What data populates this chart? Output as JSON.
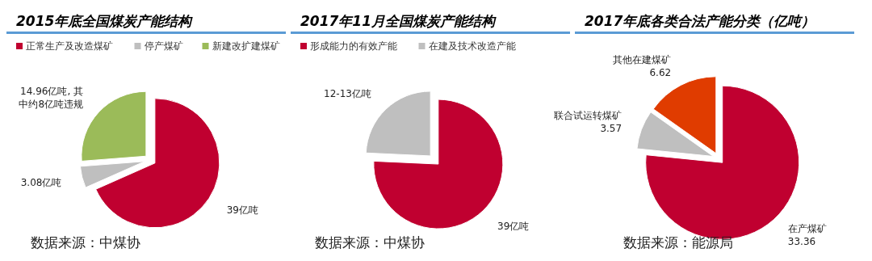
{
  "chart_data": [
    {
      "type": "pie",
      "title": "2015年底全国煤炭产能结构",
      "categories": [
        "正常生产及改造煤矿",
        "停产煤矿",
        "新建改扩建煤矿"
      ],
      "values": [
        39,
        3.08,
        14.96
      ],
      "colors": [
        "#c00030",
        "#bfbfbf",
        "#9bbb59"
      ],
      "value_labels": [
        "39亿吨",
        "3.08亿吨",
        "14.96亿吨, 其中约8亿吨违规"
      ],
      "legend": "top",
      "annotations": [
        "数据来源：中煤协"
      ]
    },
    {
      "type": "pie",
      "title": "2017年11月全国煤炭产能结构",
      "categories": [
        "形成能力的有效产能",
        "在建及技术改造产能"
      ],
      "values": [
        39,
        12.5
      ],
      "colors": [
        "#c00030",
        "#bfbfbf"
      ],
      "value_labels": [
        "39亿吨",
        "12-13亿吨"
      ],
      "legend": "top",
      "annotations": [
        "数据来源：中煤协"
      ]
    },
    {
      "type": "pie",
      "title": "2017年底各类合法产能分类（亿吨）",
      "categories": [
        "在产煤矿",
        "联合试运转煤矿",
        "其他在建煤矿"
      ],
      "values": [
        33.36,
        3.57,
        6.62
      ],
      "colors": [
        "#c00030",
        "#bfbfbf",
        "#e03c00"
      ],
      "data_labels": true,
      "annotations": [
        "数据来源：能源局"
      ]
    }
  ]
}
